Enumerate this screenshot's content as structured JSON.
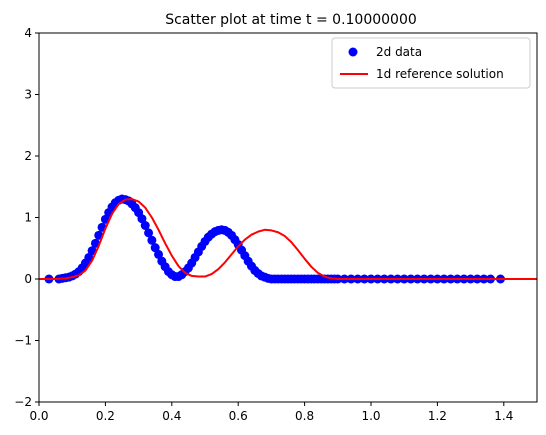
{
  "chart_data": {
    "type": "scatter",
    "title": "Scatter plot at time t =      0.10000000",
    "xlabel": "",
    "ylabel": "",
    "xlim": [
      0,
      1.5
    ],
    "ylim": [
      -2,
      4
    ],
    "x_ticks": [
      "0.0",
      "0.2",
      "0.4",
      "0.6",
      "0.8",
      "1.0",
      "1.2",
      "1.4"
    ],
    "y_ticks": [
      "−2",
      "−1",
      "0",
      "1",
      "2",
      "3",
      "4"
    ],
    "legend_position": "top-right",
    "series": [
      {
        "name": "2d data",
        "kind": "points",
        "color": "#0000ff",
        "x": [
          0.03,
          0.06,
          0.07,
          0.08,
          0.09,
          0.1,
          0.11,
          0.12,
          0.13,
          0.14,
          0.15,
          0.16,
          0.17,
          0.18,
          0.19,
          0.2,
          0.21,
          0.22,
          0.23,
          0.24,
          0.25,
          0.26,
          0.27,
          0.28,
          0.29,
          0.3,
          0.31,
          0.32,
          0.33,
          0.34,
          0.35,
          0.36,
          0.37,
          0.38,
          0.39,
          0.4,
          0.41,
          0.42,
          0.43,
          0.44,
          0.45,
          0.46,
          0.47,
          0.48,
          0.49,
          0.5,
          0.51,
          0.52,
          0.53,
          0.54,
          0.55,
          0.56,
          0.57,
          0.58,
          0.59,
          0.6,
          0.61,
          0.62,
          0.63,
          0.64,
          0.65,
          0.66,
          0.67,
          0.68,
          0.69,
          0.7,
          0.71,
          0.72,
          0.73,
          0.74,
          0.75,
          0.76,
          0.77,
          0.78,
          0.79,
          0.8,
          0.81,
          0.82,
          0.83,
          0.84,
          0.85,
          0.86,
          0.87,
          0.88,
          0.89,
          0.9,
          0.92,
          0.94,
          0.96,
          0.98,
          1.0,
          1.02,
          1.04,
          1.06,
          1.08,
          1.1,
          1.12,
          1.14,
          1.16,
          1.18,
          1.2,
          1.22,
          1.24,
          1.26,
          1.28,
          1.3,
          1.32,
          1.34,
          1.36,
          1.39
        ],
        "y": [
          0.0,
          0.0,
          0.01,
          0.02,
          0.03,
          0.05,
          0.08,
          0.12,
          0.18,
          0.26,
          0.35,
          0.46,
          0.58,
          0.71,
          0.84,
          0.97,
          1.08,
          1.17,
          1.24,
          1.28,
          1.3,
          1.29,
          1.27,
          1.22,
          1.16,
          1.08,
          0.98,
          0.87,
          0.75,
          0.63,
          0.51,
          0.4,
          0.29,
          0.2,
          0.12,
          0.07,
          0.04,
          0.04,
          0.07,
          0.12,
          0.18,
          0.26,
          0.35,
          0.44,
          0.53,
          0.61,
          0.68,
          0.73,
          0.77,
          0.79,
          0.8,
          0.79,
          0.76,
          0.71,
          0.64,
          0.56,
          0.47,
          0.38,
          0.29,
          0.21,
          0.14,
          0.09,
          0.05,
          0.03,
          0.01,
          0.0,
          0.0,
          0.0,
          0.0,
          0.0,
          0.0,
          0.0,
          0.0,
          0.0,
          0.0,
          0.0,
          0.0,
          0.0,
          0.0,
          0.0,
          0.0,
          0.0,
          0.0,
          0.0,
          0.0,
          0.0,
          0.0,
          0.0,
          0.0,
          0.0,
          0.0,
          0.0,
          0.0,
          0.0,
          0.0,
          0.0,
          0.0,
          0.0,
          0.0,
          0.0,
          0.0,
          0.0,
          0.0,
          0.0,
          0.0,
          0.0,
          0.0,
          0.0,
          0.0,
          0.0
        ]
      },
      {
        "name": "1d reference solution",
        "kind": "line",
        "color": "#ff0000",
        "x": [
          0.0,
          0.05,
          0.08,
          0.1,
          0.12,
          0.14,
          0.16,
          0.18,
          0.2,
          0.22,
          0.24,
          0.26,
          0.28,
          0.3,
          0.32,
          0.34,
          0.36,
          0.38,
          0.4,
          0.42,
          0.44,
          0.46,
          0.48,
          0.5,
          0.52,
          0.54,
          0.56,
          0.58,
          0.6,
          0.62,
          0.64,
          0.66,
          0.68,
          0.7,
          0.72,
          0.74,
          0.76,
          0.78,
          0.8,
          0.82,
          0.84,
          0.86,
          0.88,
          0.9,
          0.95,
          1.0,
          1.2,
          1.5
        ],
        "y": [
          0.0,
          0.0,
          0.01,
          0.03,
          0.06,
          0.14,
          0.3,
          0.54,
          0.82,
          1.06,
          1.22,
          1.29,
          1.3,
          1.26,
          1.16,
          1.0,
          0.8,
          0.58,
          0.38,
          0.21,
          0.1,
          0.05,
          0.04,
          0.04,
          0.08,
          0.16,
          0.27,
          0.4,
          0.53,
          0.64,
          0.72,
          0.77,
          0.8,
          0.79,
          0.76,
          0.7,
          0.6,
          0.47,
          0.33,
          0.2,
          0.1,
          0.04,
          0.01,
          0.0,
          0.0,
          0.0,
          0.0,
          0.0
        ]
      }
    ]
  }
}
